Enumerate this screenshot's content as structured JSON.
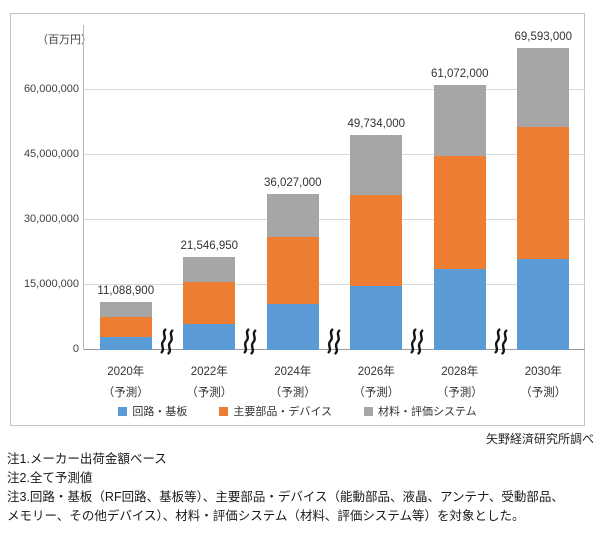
{
  "chart_data": {
    "type": "bar",
    "subtype": "stacked",
    "unit_label": "（百万円）",
    "categories": [
      "2020年",
      "2022年",
      "2024年",
      "2026年",
      "2028年",
      "2030年"
    ],
    "category_note": "（予測）",
    "totals": [
      "11,088,900",
      "21,546,950",
      "36,027,000",
      "49,734,000",
      "61,072,000",
      "69,593,000"
    ],
    "total_values": [
      11088900,
      21546950,
      36027000,
      49734000,
      61072000,
      69593000
    ],
    "series": [
      {
        "name": "回路・基板",
        "color": "#5b9bd5",
        "values": [
          2900000,
          6100000,
          10700000,
          14800000,
          18700000,
          21000000
        ]
      },
      {
        "name": "主要部品・デバイス",
        "color": "#ed7d31",
        "values": [
          4700000,
          9500000,
          15300000,
          21000000,
          26000000,
          30400000
        ]
      },
      {
        "name": "材料・評価システム",
        "color": "#a6a6a6",
        "values": [
          3488900,
          5946950,
          10027000,
          13934000,
          16372000,
          18193000
        ]
      }
    ],
    "y_ticks": [
      "0",
      "15,000,000",
      "30,000,000",
      "45,000,000",
      "60,000,000"
    ],
    "y_tick_values": [
      0,
      15000000,
      30000000,
      45000000,
      60000000
    ],
    "ylim": [
      0,
      75000000
    ],
    "grid": true,
    "legend_position": "bottom",
    "axis_break_between_bars": true
  },
  "source": "矢野経済研究所調べ",
  "notes": [
    "注1.メーカー出荷金額ベース",
    "注2.全て予測値",
    "注3.回路・基板（RF回路、基板等）、主要部品・デバイス（能動部品、液晶、アンテナ、受動部品、",
    "メモリー、その他デバイス）、材料・評価システム（材料、評価システム等）を対象とした。"
  ]
}
